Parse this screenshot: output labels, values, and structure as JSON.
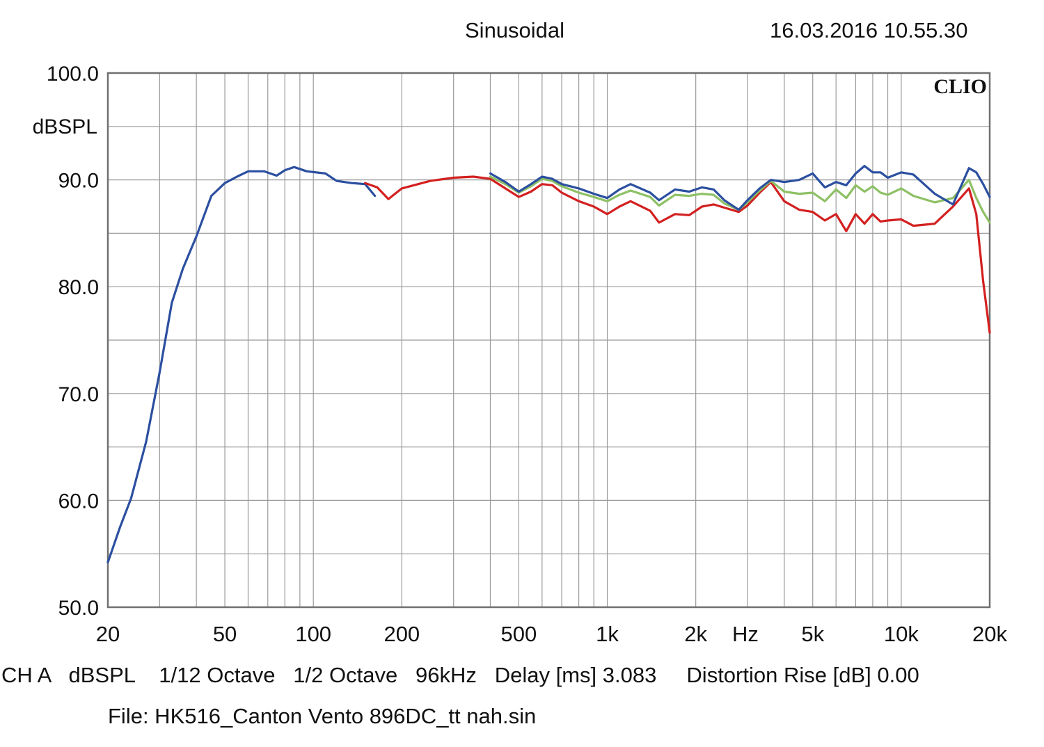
{
  "header": {
    "title": "Sinusoidal",
    "datetime": "16.03.2016 10.55.30"
  },
  "chart_data": {
    "type": "line",
    "brand": "CLIO",
    "ylabel": "dBSPL",
    "xunit": "Hz",
    "xscale": "log",
    "xlim": [
      20,
      20000
    ],
    "ylim": [
      50,
      100
    ],
    "grid": true,
    "y_ticks": [
      {
        "v": 100,
        "label": "100.0"
      },
      {
        "v": 90,
        "label": "90.0"
      },
      {
        "v": 80,
        "label": "80.0"
      },
      {
        "v": 70,
        "label": "70.0"
      },
      {
        "v": 60,
        "label": "60.0"
      },
      {
        "v": 50,
        "label": "50.0"
      }
    ],
    "x_ticks": [
      {
        "v": 20,
        "label": "20"
      },
      {
        "v": 50,
        "label": "50"
      },
      {
        "v": 100,
        "label": "100"
      },
      {
        "v": 200,
        "label": "200"
      },
      {
        "v": 500,
        "label": "500"
      },
      {
        "v": 1000,
        "label": "1k"
      },
      {
        "v": 2000,
        "label": "2k"
      },
      {
        "v": 5000,
        "label": "5k"
      },
      {
        "v": 10000,
        "label": "10k"
      },
      {
        "v": 20000,
        "label": "20k"
      }
    ],
    "series": [
      {
        "color": "#2b4fa0",
        "points": [
          [
            20,
            54.2
          ],
          [
            22,
            57.5
          ],
          [
            24,
            60.2
          ],
          [
            27,
            65.5
          ],
          [
            30,
            72
          ],
          [
            33,
            78.5
          ],
          [
            36,
            81.7
          ],
          [
            40,
            84.7
          ],
          [
            45,
            88.5
          ],
          [
            50,
            89.7
          ],
          [
            55,
            90.3
          ],
          [
            60,
            90.8
          ],
          [
            68,
            90.8
          ],
          [
            75,
            90.4
          ],
          [
            80,
            90.9
          ],
          [
            86,
            91.2
          ],
          [
            95,
            90.8
          ],
          [
            110,
            90.6
          ],
          [
            120,
            89.9
          ],
          [
            135,
            89.7
          ],
          [
            150,
            89.6
          ],
          [
            162,
            88.5
          ]
        ]
      },
      {
        "color": "#d32020",
        "points": [
          [
            150,
            89.7
          ],
          [
            165,
            89.3
          ],
          [
            180,
            88.2
          ],
          [
            200,
            89.2
          ],
          [
            250,
            89.9
          ],
          [
            300,
            90.2
          ],
          [
            350,
            90.3
          ],
          [
            400,
            90.1
          ],
          [
            450,
            89.2
          ],
          [
            500,
            88.4
          ],
          [
            550,
            88.9
          ],
          [
            600,
            89.6
          ],
          [
            650,
            89.5
          ],
          [
            700,
            88.8
          ],
          [
            800,
            88.0
          ],
          [
            900,
            87.5
          ],
          [
            1000,
            86.8
          ],
          [
            1100,
            87.5
          ],
          [
            1200,
            88.0
          ],
          [
            1400,
            87.1
          ],
          [
            1500,
            86.0
          ],
          [
            1700,
            86.8
          ],
          [
            1900,
            86.7
          ],
          [
            2100,
            87.5
          ],
          [
            2300,
            87.7
          ],
          [
            2500,
            87.4
          ],
          [
            2800,
            87.0
          ],
          [
            3000,
            87.6
          ],
          [
            3300,
            88.8
          ],
          [
            3600,
            89.8
          ],
          [
            4000,
            88.0
          ],
          [
            4500,
            87.2
          ],
          [
            5000,
            87.0
          ],
          [
            5500,
            86.2
          ],
          [
            6000,
            86.8
          ],
          [
            6500,
            85.2
          ],
          [
            7000,
            86.8
          ],
          [
            7500,
            85.9
          ],
          [
            8000,
            86.8
          ],
          [
            8500,
            86.1
          ],
          [
            9000,
            86.2
          ],
          [
            10000,
            86.3
          ],
          [
            11000,
            85.7
          ],
          [
            13000,
            85.9
          ],
          [
            15000,
            87.5
          ],
          [
            17000,
            89.2
          ],
          [
            18000,
            86.8
          ],
          [
            19000,
            80.5
          ],
          [
            20000,
            75.7
          ]
        ]
      },
      {
        "color": "#8ec065",
        "points": [
          [
            400,
            90.3
          ],
          [
            450,
            89.6
          ],
          [
            500,
            88.8
          ],
          [
            550,
            89.4
          ],
          [
            600,
            90.1
          ],
          [
            650,
            89.9
          ],
          [
            700,
            89.4
          ],
          [
            800,
            88.8
          ],
          [
            900,
            88.4
          ],
          [
            1000,
            88.0
          ],
          [
            1100,
            88.6
          ],
          [
            1200,
            89.0
          ],
          [
            1400,
            88.4
          ],
          [
            1500,
            87.6
          ],
          [
            1700,
            88.6
          ],
          [
            1900,
            88.5
          ],
          [
            2100,
            88.7
          ],
          [
            2300,
            88.6
          ],
          [
            2500,
            87.8
          ],
          [
            2800,
            87.2
          ],
          [
            3000,
            87.9
          ],
          [
            3300,
            89.0
          ],
          [
            3600,
            89.9
          ],
          [
            4000,
            88.9
          ],
          [
            4500,
            88.7
          ],
          [
            5000,
            88.8
          ],
          [
            5500,
            88.0
          ],
          [
            6000,
            89.1
          ],
          [
            6500,
            88.3
          ],
          [
            7000,
            89.5
          ],
          [
            7500,
            88.9
          ],
          [
            8000,
            89.4
          ],
          [
            8500,
            88.8
          ],
          [
            9000,
            88.6
          ],
          [
            10000,
            89.2
          ],
          [
            11000,
            88.5
          ],
          [
            13000,
            87.9
          ],
          [
            15000,
            88.3
          ],
          [
            17000,
            90.0
          ],
          [
            18000,
            88.3
          ],
          [
            19000,
            87.0
          ],
          [
            20000,
            86.0
          ]
        ]
      },
      {
        "color": "#2b4fa0",
        "points": [
          [
            400,
            90.6
          ],
          [
            450,
            89.8
          ],
          [
            500,
            88.9
          ],
          [
            550,
            89.6
          ],
          [
            600,
            90.3
          ],
          [
            650,
            90.1
          ],
          [
            700,
            89.6
          ],
          [
            800,
            89.2
          ],
          [
            900,
            88.7
          ],
          [
            1000,
            88.3
          ],
          [
            1100,
            89.1
          ],
          [
            1200,
            89.6
          ],
          [
            1400,
            88.8
          ],
          [
            1500,
            88.1
          ],
          [
            1700,
            89.1
          ],
          [
            1900,
            88.9
          ],
          [
            2100,
            89.3
          ],
          [
            2300,
            89.1
          ],
          [
            2500,
            88.1
          ],
          [
            2800,
            87.2
          ],
          [
            3000,
            88.1
          ],
          [
            3300,
            89.2
          ],
          [
            3600,
            90.0
          ],
          [
            4000,
            89.8
          ],
          [
            4500,
            90.0
          ],
          [
            5000,
            90.6
          ],
          [
            5500,
            89.3
          ],
          [
            6000,
            89.8
          ],
          [
            6500,
            89.5
          ],
          [
            7000,
            90.6
          ],
          [
            7500,
            91.3
          ],
          [
            8000,
            90.7
          ],
          [
            8500,
            90.7
          ],
          [
            9000,
            90.2
          ],
          [
            10000,
            90.7
          ],
          [
            11000,
            90.5
          ],
          [
            13000,
            88.7
          ],
          [
            15000,
            87.7
          ],
          [
            17000,
            91.1
          ],
          [
            18000,
            90.7
          ],
          [
            19000,
            89.6
          ],
          [
            20000,
            88.4
          ]
        ]
      }
    ]
  },
  "footer": {
    "settings": "CH A   dBSPL    1/12 Octave   1/2 Octave   96kHz   Delay [ms] 3.083     Distortion Rise [dB] 0.00",
    "file": "File: HK516_Canton Vento 896DC_tt nah.sin"
  }
}
